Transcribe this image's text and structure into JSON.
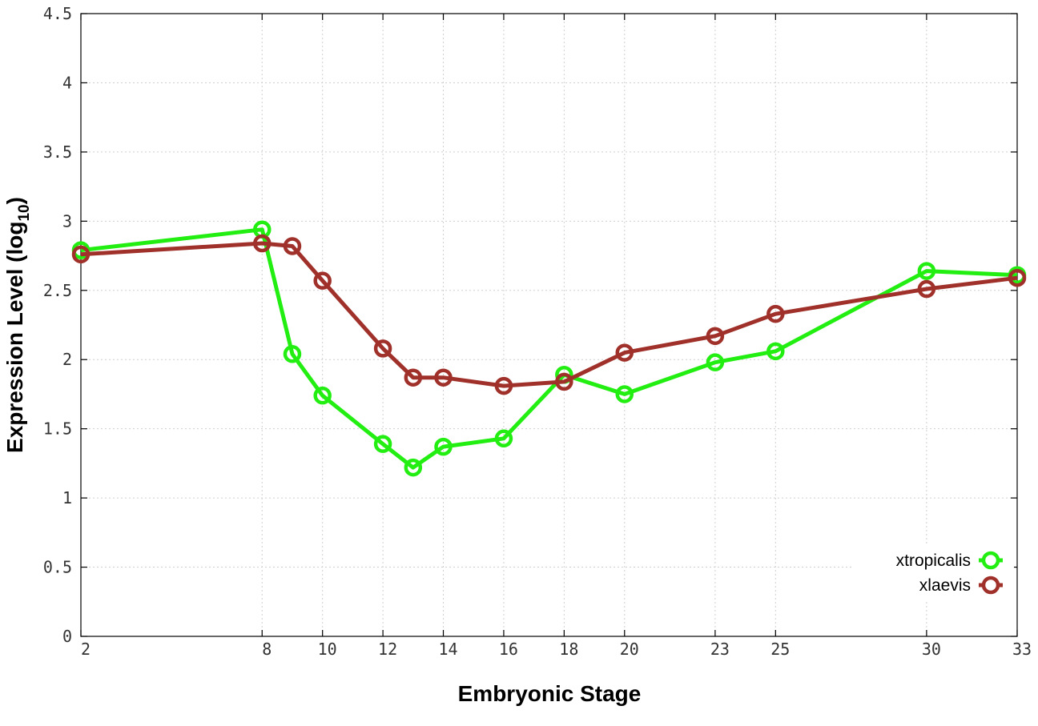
{
  "chart_data": {
    "type": "line",
    "xlabel": "Embryonic Stage",
    "ylabel": "Expression Level (log",
    "ylabel_subscript": "10",
    "ylabel_close": ")",
    "x_ticks": [
      "2",
      "8",
      "10",
      "12",
      "14",
      "16",
      "18",
      "20",
      "23",
      "25",
      "30",
      "33"
    ],
    "y_ticks": [
      "0",
      "0.5",
      "1",
      "1.5",
      "2",
      "2.5",
      "3",
      "3.5",
      "4",
      "4.5"
    ],
    "xlim": [
      2,
      33
    ],
    "ylim": [
      0,
      4.5
    ],
    "grid": true,
    "legend_position": "bottom-right",
    "x": [
      2,
      8,
      9,
      10,
      12,
      13,
      14,
      16,
      18,
      20,
      23,
      25,
      30,
      33
    ],
    "series": [
      {
        "name": "xtropicalis",
        "color": "#22ee11",
        "values": [
          2.79,
          2.94,
          2.04,
          1.74,
          1.39,
          1.22,
          1.37,
          1.43,
          1.89,
          1.75,
          1.98,
          2.06,
          2.64,
          2.61
        ]
      },
      {
        "name": "xlaevis",
        "color": "#a0302a",
        "values": [
          2.76,
          2.84,
          2.82,
          2.57,
          2.08,
          1.87,
          1.87,
          1.81,
          1.84,
          2.05,
          2.17,
          2.33,
          2.51,
          2.59
        ]
      }
    ]
  }
}
